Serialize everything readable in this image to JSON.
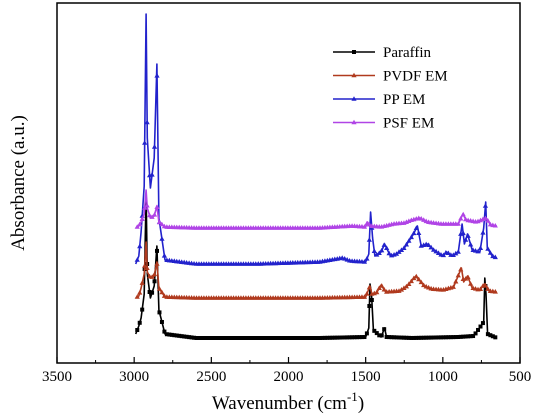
{
  "chart_data": {
    "type": "line",
    "title": "",
    "xlabel": "Wavenumber (cm",
    "xlabel_sup": "-1",
    "xlabel_end": ")",
    "ylabel": "Absorbance (a.u.)",
    "xlim": [
      3500,
      500
    ],
    "x_reversed": true,
    "x_ticks": [
      "3500",
      "3000",
      "2500",
      "2000",
      "1500",
      "1000",
      "500"
    ],
    "y_ticks_shown": false,
    "grid": false,
    "legend_position": "top-right",
    "series": [
      {
        "name": "Paraffin",
        "color": "#000000",
        "marker": "square",
        "points": [
          [
            3500,
            null
          ],
          [
            2990,
            0.02
          ],
          [
            2970,
            0.06
          ],
          [
            2955,
            0.1
          ],
          [
            2935,
            0.22
          ],
          [
            2923,
            0.72
          ],
          [
            2915,
            0.32
          ],
          [
            2895,
            0.2
          ],
          [
            2870,
            0.26
          ],
          [
            2853,
            0.46
          ],
          [
            2840,
            0.14
          ],
          [
            2800,
            0.02
          ],
          [
            2600,
            0.0
          ],
          [
            2200,
            0.0
          ],
          [
            1800,
            0.0
          ],
          [
            1500,
            0.005
          ],
          [
            1480,
            0.05
          ],
          [
            1472,
            0.27
          ],
          [
            1462,
            0.22
          ],
          [
            1450,
            0.04
          ],
          [
            1400,
            0.005
          ],
          [
            1377,
            0.05
          ],
          [
            1365,
            0.005
          ],
          [
            1200,
            0.0
          ],
          [
            900,
            0.005
          ],
          [
            800,
            0.01
          ],
          [
            735,
            0.08
          ],
          [
            728,
            0.3
          ],
          [
            720,
            0.22
          ],
          [
            710,
            0.02
          ],
          [
            650,
            0.0
          ]
        ]
      },
      {
        "name": "PVDF EM",
        "color": "#b03a1e",
        "marker": "triangle",
        "points": [
          [
            2990,
            0.2
          ],
          [
            2970,
            0.21
          ],
          [
            2955,
            0.25
          ],
          [
            2935,
            0.32
          ],
          [
            2923,
            0.48
          ],
          [
            2915,
            0.33
          ],
          [
            2895,
            0.3
          ],
          [
            2870,
            0.31
          ],
          [
            2853,
            0.38
          ],
          [
            2840,
            0.25
          ],
          [
            2800,
            0.205
          ],
          [
            2600,
            0.2
          ],
          [
            2200,
            0.2
          ],
          [
            1800,
            0.2
          ],
          [
            1500,
            0.205
          ],
          [
            1472,
            0.26
          ],
          [
            1460,
            0.22
          ],
          [
            1430,
            0.225
          ],
          [
            1400,
            0.265
          ],
          [
            1370,
            0.23
          ],
          [
            1280,
            0.235
          ],
          [
            1230,
            0.26
          ],
          [
            1175,
            0.31
          ],
          [
            1120,
            0.26
          ],
          [
            1070,
            0.245
          ],
          [
            1000,
            0.24
          ],
          [
            930,
            0.255
          ],
          [
            880,
            0.35
          ],
          [
            865,
            0.28
          ],
          [
            840,
            0.31
          ],
          [
            810,
            0.25
          ],
          [
            760,
            0.24
          ],
          [
            730,
            0.27
          ],
          [
            700,
            0.235
          ],
          [
            650,
            0.23
          ]
        ]
      },
      {
        "name": "PP EM",
        "color": "#2222cc",
        "marker": "triangle",
        "points": [
          [
            2990,
            0.37
          ],
          [
            2970,
            0.41
          ],
          [
            2955,
            0.53
          ],
          [
            2935,
            0.76
          ],
          [
            2923,
            1.62
          ],
          [
            2915,
            1.0
          ],
          [
            2895,
            0.75
          ],
          [
            2870,
            0.9
          ],
          [
            2853,
            1.37
          ],
          [
            2840,
            0.6
          ],
          [
            2800,
            0.39
          ],
          [
            2600,
            0.37
          ],
          [
            2200,
            0.37
          ],
          [
            1800,
            0.38
          ],
          [
            1650,
            0.4
          ],
          [
            1600,
            0.385
          ],
          [
            1500,
            0.38
          ],
          [
            1480,
            0.42
          ],
          [
            1468,
            0.63
          ],
          [
            1455,
            0.5
          ],
          [
            1440,
            0.41
          ],
          [
            1400,
            0.43
          ],
          [
            1377,
            0.47
          ],
          [
            1340,
            0.41
          ],
          [
            1300,
            0.42
          ],
          [
            1250,
            0.45
          ],
          [
            1190,
            0.52
          ],
          [
            1165,
            0.56
          ],
          [
            1140,
            0.46
          ],
          [
            1100,
            0.47
          ],
          [
            1060,
            0.44
          ],
          [
            1000,
            0.41
          ],
          [
            975,
            0.43
          ],
          [
            940,
            0.41
          ],
          [
            900,
            0.43
          ],
          [
            875,
            0.57
          ],
          [
            860,
            0.47
          ],
          [
            840,
            0.52
          ],
          [
            810,
            0.44
          ],
          [
            760,
            0.43
          ],
          [
            735,
            0.55
          ],
          [
            722,
            0.68
          ],
          [
            712,
            0.45
          ],
          [
            680,
            0.41
          ],
          [
            650,
            0.4
          ]
        ]
      },
      {
        "name": "PSF EM",
        "color": "#b044e6",
        "marker": "triangle",
        "points": [
          [
            2990,
            0.55
          ],
          [
            2970,
            0.56
          ],
          [
            2955,
            0.58
          ],
          [
            2935,
            0.62
          ],
          [
            2923,
            0.74
          ],
          [
            2915,
            0.65
          ],
          [
            2895,
            0.6
          ],
          [
            2870,
            0.61
          ],
          [
            2853,
            0.66
          ],
          [
            2840,
            0.58
          ],
          [
            2800,
            0.555
          ],
          [
            2600,
            0.55
          ],
          [
            2200,
            0.55
          ],
          [
            1800,
            0.55
          ],
          [
            1590,
            0.56
          ],
          [
            1500,
            0.555
          ],
          [
            1488,
            0.58
          ],
          [
            1470,
            0.56
          ],
          [
            1400,
            0.555
          ],
          [
            1320,
            0.57
          ],
          [
            1250,
            0.575
          ],
          [
            1200,
            0.59
          ],
          [
            1150,
            0.6
          ],
          [
            1100,
            0.58
          ],
          [
            1010,
            0.57
          ],
          [
            900,
            0.57
          ],
          [
            870,
            0.62
          ],
          [
            850,
            0.59
          ],
          [
            780,
            0.58
          ],
          [
            720,
            0.6
          ],
          [
            690,
            0.565
          ],
          [
            650,
            0.56
          ]
        ]
      }
    ]
  }
}
